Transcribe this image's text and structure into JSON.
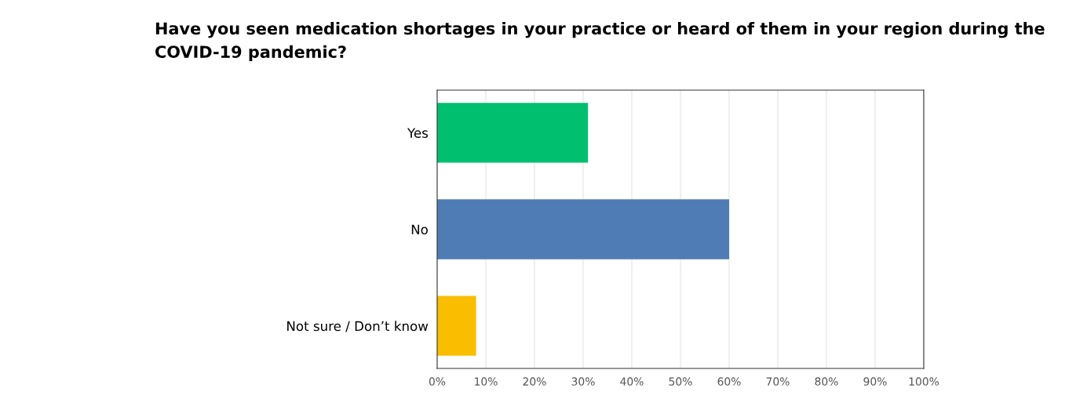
{
  "chart_data": {
    "type": "bar",
    "orientation": "horizontal",
    "title": "Have you seen medication shortages in your practice or heard of them in your region during the COVID-19 pandemic?",
    "categories": [
      "Yes",
      "No",
      "Not sure / Don’t know"
    ],
    "values": [
      31,
      60,
      8
    ],
    "colors": [
      "#00bf6f",
      "#507cb6",
      "#f9be00"
    ],
    "xlim": [
      0,
      100
    ],
    "xticks": [
      {
        "value": 0,
        "label": "0%"
      },
      {
        "value": 10,
        "label": "10%"
      },
      {
        "value": 20,
        "label": "20%"
      },
      {
        "value": 30,
        "label": "30%"
      },
      {
        "value": 40,
        "label": "40%"
      },
      {
        "value": 50,
        "label": "50%"
      },
      {
        "value": 60,
        "label": "60%"
      },
      {
        "value": 70,
        "label": "70%"
      },
      {
        "value": 80,
        "label": "80%"
      },
      {
        "value": 90,
        "label": "90%"
      },
      {
        "value": 100,
        "label": "100%"
      }
    ],
    "grid": "x"
  }
}
